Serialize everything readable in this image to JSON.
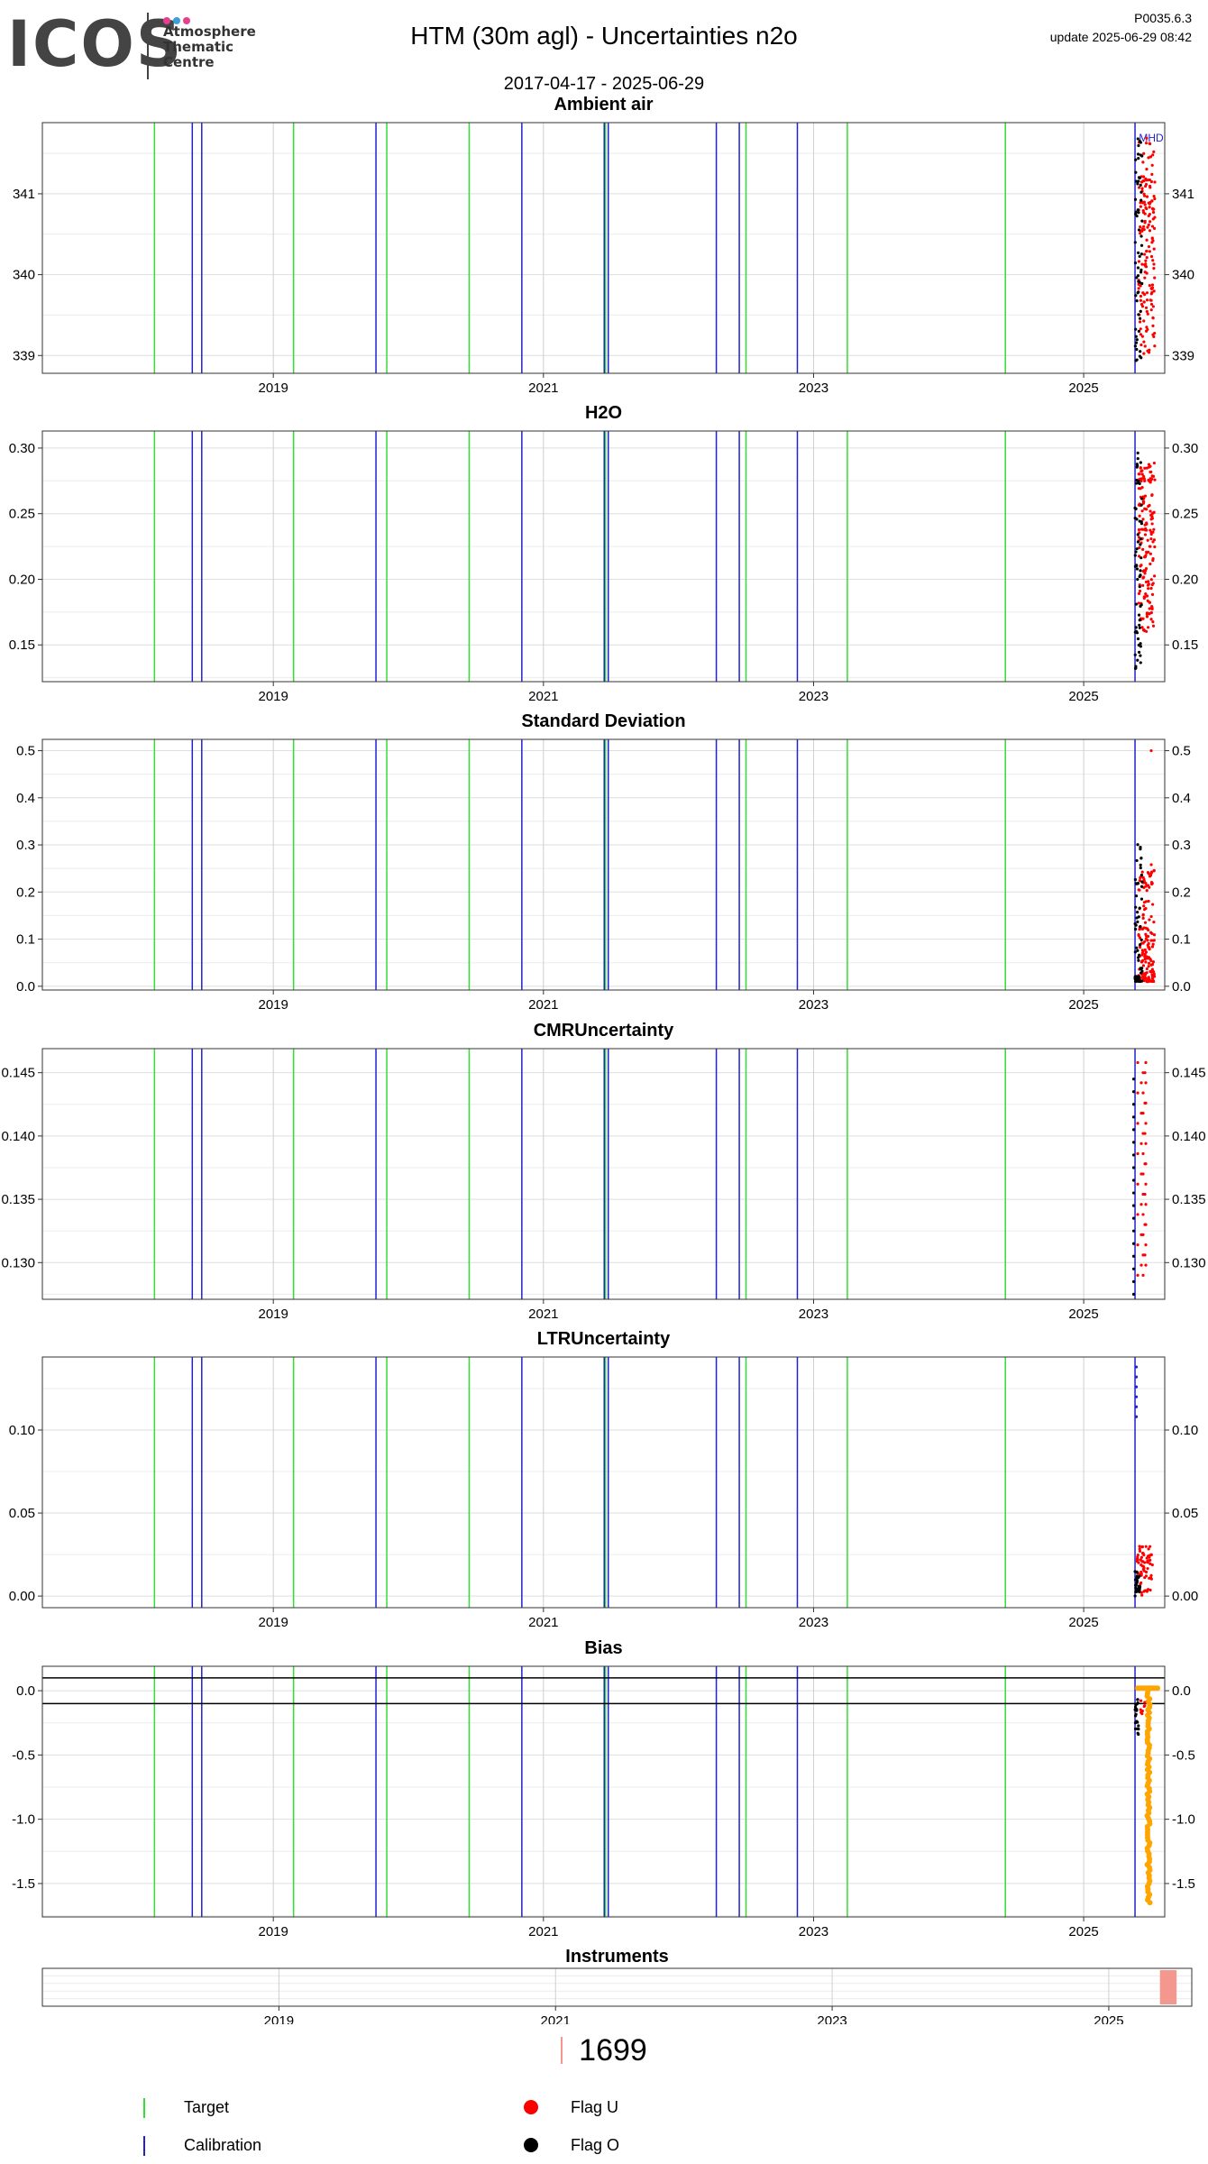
{
  "header": {
    "logo": "ICOS",
    "logo_sub": [
      "Atmosphere",
      "Thematic",
      "Centre"
    ],
    "title": "HTM  (30m agl) - Uncertainties n2o",
    "date_range": "2017-04-17 - 2025-06-29",
    "version": "P0035.6.3",
    "update": "update  2025-06-29 08:42"
  },
  "colors": {
    "target": "#33dd33",
    "calibration": "#2222cc",
    "flag_u": "#ff0000",
    "flag_o": "#000000",
    "bias_series": "#ffa500",
    "instrument": "#f4978e"
  },
  "chart_data": [
    {
      "type": "scatter",
      "title": "Ambient air",
      "xlim": [
        2017.29,
        2025.6
      ],
      "ylim": [
        338.78,
        341.88
      ],
      "yticks": [
        339,
        340,
        341
      ],
      "yticklabels": [
        "339",
        "340",
        "341"
      ],
      "xticks": [
        2019,
        2021,
        2023,
        2025
      ],
      "xticklabels": [
        "2019",
        "2021",
        "2023",
        "2025"
      ],
      "right_axis": true,
      "annotation": {
        "text": "MHD",
        "x": 2025.5,
        "y": 341.7
      },
      "grid": true
    },
    {
      "type": "scatter",
      "title": "H2O",
      "xlim": [
        2017.29,
        2025.6
      ],
      "ylim": [
        0.122,
        0.313
      ],
      "yticks": [
        0.15,
        0.2,
        0.25,
        0.3
      ],
      "yticklabels": [
        "0.15",
        "0.20",
        "0.25",
        "0.30"
      ],
      "xticks": [
        2019,
        2021,
        2023,
        2025
      ],
      "xticklabels": [
        "2019",
        "2021",
        "2023",
        "2025"
      ],
      "right_axis": true,
      "grid": true
    },
    {
      "type": "scatter",
      "title": "Standard Deviation",
      "xlim": [
        2017.29,
        2025.6
      ],
      "ylim": [
        -0.008,
        0.524
      ],
      "yticks": [
        0.0,
        0.1,
        0.2,
        0.3,
        0.4,
        0.5
      ],
      "yticklabels": [
        "0.0",
        "0.1",
        "0.2",
        "0.3",
        "0.4",
        "0.5"
      ],
      "xticks": [
        2019,
        2021,
        2023,
        2025
      ],
      "xticklabels": [
        "2019",
        "2021",
        "2023",
        "2025"
      ],
      "right_axis": true,
      "grid": true
    },
    {
      "type": "scatter",
      "title": "CMRUncertainty",
      "xlim": [
        2017.29,
        2025.6
      ],
      "ylim": [
        0.1271,
        0.1469
      ],
      "yticks": [
        0.13,
        0.135,
        0.14,
        0.145
      ],
      "yticklabels": [
        "0.130",
        "0.135",
        "0.140",
        "0.145"
      ],
      "xticks": [
        2019,
        2021,
        2023,
        2025
      ],
      "xticklabels": [
        "2019",
        "2021",
        "2023",
        "2025"
      ],
      "right_axis": true,
      "grid": true
    },
    {
      "type": "scatter",
      "title": "LTRUncertainty",
      "xlim": [
        2017.29,
        2025.6
      ],
      "ylim": [
        -0.007,
        0.144
      ],
      "yticks": [
        0.0,
        0.05,
        0.1
      ],
      "yticklabels": [
        "0.00",
        "0.05",
        "0.10"
      ],
      "xticks": [
        2019,
        2021,
        2023,
        2025
      ],
      "xticklabels": [
        "2019",
        "2021",
        "2023",
        "2025"
      ],
      "right_axis": true,
      "grid": true
    },
    {
      "type": "scatter",
      "title": "Bias",
      "xlim": [
        2017.29,
        2025.6
      ],
      "ylim": [
        -1.76,
        0.19
      ],
      "yticks": [
        -1.5,
        -1.0,
        -0.5,
        0.0
      ],
      "yticklabels": [
        "-1.5",
        "-1.0",
        "-0.5",
        "0.0"
      ],
      "xticks": [
        2019,
        2021,
        2023,
        2025
      ],
      "xticklabels": [
        "2019",
        "2021",
        "2023",
        "2025"
      ],
      "right_axis": true,
      "hlines": [
        0.1,
        -0.1
      ],
      "grid": true
    },
    {
      "type": "bar",
      "title": "Instruments",
      "xlim": [
        2017.29,
        2025.6
      ],
      "xticks": [
        2019,
        2021,
        2023,
        2025
      ],
      "xticklabels": [
        "2019",
        "2021",
        "2023",
        "2025"
      ],
      "bars": [
        {
          "name": "1699",
          "start": 2025.37,
          "end": 2025.49
        }
      ]
    }
  ],
  "events": {
    "target": [
      2018.12,
      2019.15,
      2019.84,
      2020.45,
      2021.46,
      2022.5,
      2023.25,
      2024.42
    ],
    "calibration": [
      2018.4,
      2018.47,
      2019.76,
      2020.84,
      2021.45,
      2021.48,
      2022.28,
      2022.45,
      2022.88,
      2025.38
    ]
  },
  "legend": {
    "instrument_id": "1699",
    "items": [
      {
        "label": "Target",
        "kind": "line",
        "color": "#33dd33"
      },
      {
        "label": "Calibration",
        "kind": "line",
        "color": "#2222cc"
      },
      {
        "label": "Flag U",
        "kind": "dot",
        "color": "#ff0000"
      },
      {
        "label": "Flag O",
        "kind": "dot",
        "color": "#000000"
      }
    ]
  }
}
